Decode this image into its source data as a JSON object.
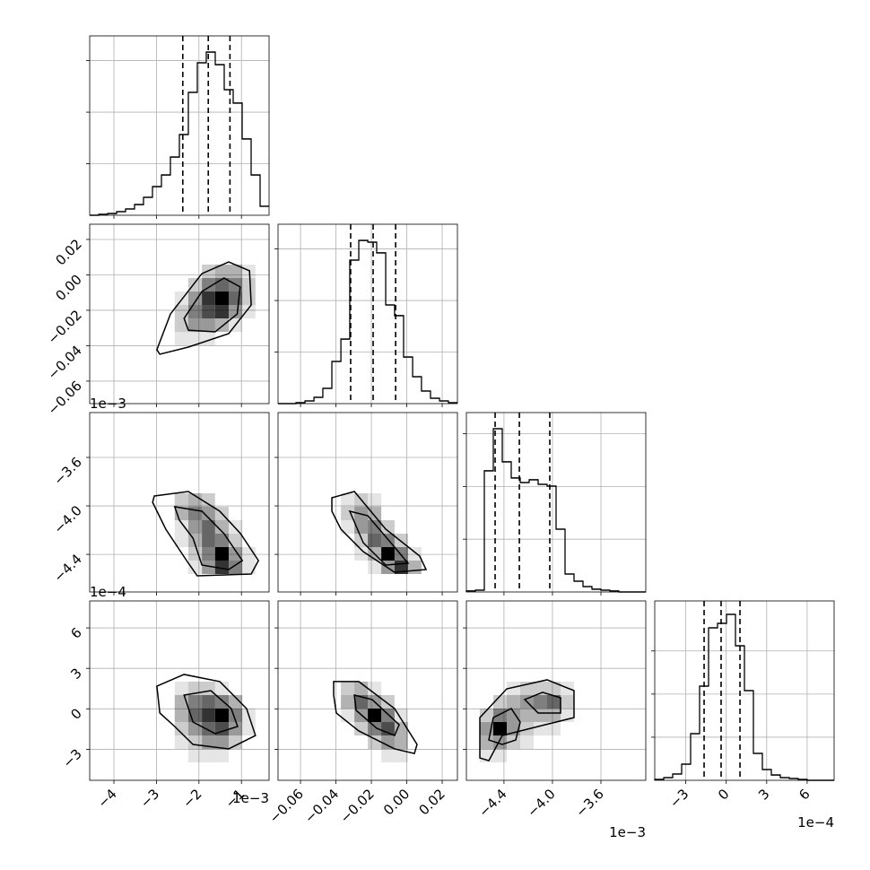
{
  "chart_data": {
    "type": "corner",
    "color": "#000000",
    "grid": true,
    "axes": [
      {
        "lim": [
          -4.57,
          -0.35
        ],
        "ticks": [
          {
            "value": -4,
            "label": "−4"
          },
          {
            "value": -3,
            "label": "−3"
          },
          {
            "value": -2,
            "label": "−2"
          },
          {
            "value": -1,
            "label": "−1"
          }
        ],
        "offset": "1e−3"
      },
      {
        "lim": [
          -0.0727,
          0.0286
        ],
        "ticks": [
          {
            "value": -0.06,
            "label": "−0.06"
          },
          {
            "value": -0.04,
            "label": "−0.04"
          },
          {
            "value": -0.02,
            "label": "−0.02"
          },
          {
            "value": 0,
            "label": "0.00"
          },
          0.02
        ]
      },
      {
        "lim": [
          -4.71,
          -3.23
        ],
        "ticks": [
          {
            "value": -4.4,
            "label": "−4.4"
          },
          {
            "value": -4,
            "label": "−4.0"
          },
          {
            "value": -3.6,
            "label": "−3.6"
          }
        ],
        "offset": "1e−3"
      },
      {
        "lim": [
          -5.3,
          8
        ],
        "ticks": [
          {
            "value": -3,
            "label": "−3"
          },
          0,
          3,
          6
        ],
        "offset": "1e−4"
      }
    ],
    "histograms": [
      {
        "bins": [
          -4.57,
          -4.359,
          -4.148,
          -3.937,
          -3.726,
          -3.515,
          -3.304,
          -3.093,
          -2.882,
          -2.671,
          -2.46,
          -2.249,
          -2.038,
          -1.827,
          -1.616,
          -1.405,
          -1.194,
          -0.983,
          -0.772,
          -0.561,
          -0.35
        ],
        "values": [
          0,
          9,
          17,
          35,
          61,
          104,
          174,
          278,
          391,
          565,
          783,
          1192,
          1479,
          1583,
          1461,
          1218,
          1088,
          740,
          391,
          87
        ],
        "quantiles": [
          -2.38,
          -1.78,
          -1.27
        ],
        "ylim": [
          0,
          1740
        ],
        "yticks": [
          500,
          1000,
          1500
        ]
      },
      {
        "bins": [
          -0.0727,
          -0.0676,
          -0.0626,
          -0.0575,
          -0.0524,
          -0.0474,
          -0.0423,
          -0.0372,
          -0.0322,
          -0.0271,
          -0.022,
          -0.017,
          -0.0119,
          -0.0069,
          -0.0018,
          0.0033,
          0.0083,
          0.0134,
          0.0185,
          0.0235,
          0.0286
        ],
        "values": [
          0,
          0,
          9,
          26,
          61,
          148,
          409,
          626,
          1392,
          1583,
          1566,
          1462,
          957,
          853,
          452,
          261,
          122,
          52,
          26,
          9
        ],
        "quantiles": [
          -0.0317,
          -0.019,
          -0.0063
        ],
        "ylim": [
          0,
          1740
        ],
        "yticks": [
          500,
          1000,
          1500
        ]
      },
      {
        "bins": [
          -4.71,
          -4.636,
          -4.562,
          -4.488,
          -4.414,
          -4.34,
          -4.266,
          -4.192,
          -4.118,
          -4.044,
          -3.97,
          -3.896,
          -3.822,
          -3.748,
          -3.674,
          -3.6,
          -3.526,
          -3.452,
          -3.378,
          -3.304,
          -3.23
        ],
        "values": [
          9,
          17,
          1148,
          1547,
          1233,
          1080,
          1037,
          1063,
          1020,
          1003,
          595,
          170,
          102,
          51,
          26,
          17,
          9,
          0,
          0,
          0
        ],
        "quantiles": [
          -4.473,
          -4.273,
          -4.022
        ],
        "ylim": [
          0,
          1700
        ],
        "yticks": [
          500,
          1000,
          1500
        ]
      },
      {
        "bins": [
          -5.3,
          -4.635,
          -3.97,
          -3.305,
          -2.64,
          -1.975,
          -1.31,
          -0.645,
          0.02,
          0.685,
          1.35,
          2.015,
          2.68,
          3.345,
          4.01,
          4.675,
          5.34,
          6.005,
          6.67,
          7.335,
          8
        ],
        "values": [
          10,
          31,
          73,
          187,
          541,
          1092,
          1768,
          1820,
          1924,
          1560,
          1040,
          312,
          125,
          62,
          31,
          21,
          10,
          0,
          0,
          0
        ],
        "quantiles": [
          -1.64,
          -0.38,
          1.02
        ],
        "ylim": [
          0,
          2080
        ],
        "yticks": [
          500,
          1000,
          1500
        ]
      }
    ],
    "panels": [
      {
        "xbins": [
          -2.57,
          -2.25,
          -1.93,
          -1.62,
          -1.3,
          -0.98,
          -0.67
        ],
        "ybins": [
          -0.0398,
          -0.0322,
          -0.0246,
          -0.017,
          -0.0094,
          -0.0018,
          0.0058
        ],
        "counts": [
          [
            1,
            1,
            1,
            0,
            0,
            0
          ],
          [
            2,
            4,
            4,
            3,
            1,
            0
          ],
          [
            2,
            5,
            7,
            8,
            4,
            1
          ],
          [
            1,
            4,
            8,
            10,
            6,
            2
          ],
          [
            0,
            2,
            5,
            6,
            5,
            2
          ],
          [
            0,
            0,
            2,
            3,
            3,
            1
          ]
        ],
        "contours": [
          {
            "x": [
              -2.99,
              -2.67,
              -1.93,
              -1.3,
              -0.81,
              -0.77,
              -1.3,
              -2.25,
              -2.92
            ],
            "y": [
              -0.0423,
              -0.0221,
              0.0007,
              0.0073,
              0.0023,
              -0.017,
              -0.0332,
              -0.0408,
              -0.0448
            ]
          },
          {
            "x": [
              -2.35,
              -1.93,
              -1.41,
              -1.03,
              -1.1,
              -1.62,
              -2.25
            ],
            "y": [
              -0.0246,
              -0.0094,
              -0.0018,
              -0.0068,
              -0.0221,
              -0.0322,
              -0.0312
            ]
          }
        ]
      },
      {
        "xbins": [
          -2.57,
          -2.25,
          -1.93,
          -1.62,
          -1.3,
          -0.98,
          -0.67
        ],
        "ybins": [
          -4.562,
          -4.451,
          -4.34,
          -4.229,
          -4.118,
          -4.007,
          -3.896
        ],
        "counts": [
          [
            0,
            1,
            4,
            8,
            5,
            1
          ],
          [
            0,
            2,
            5,
            10,
            4,
            1
          ],
          [
            1,
            3,
            6,
            5,
            2,
            0
          ],
          [
            1,
            4,
            6,
            3,
            1,
            0
          ],
          [
            3,
            5,
            4,
            2,
            0,
            0
          ],
          [
            2,
            3,
            2,
            0,
            0,
            0
          ]
        ],
        "contours": [
          {
            "x": [
              -3.05,
              -2.25,
              -1.51,
              -1.02,
              -0.6,
              -0.77,
              -2.04,
              -2.29,
              -2.78,
              -3.09
            ],
            "y": [
              -3.918,
              -3.881,
              -4.044,
              -4.229,
              -4.451,
              -4.562,
              -4.577,
              -4.451,
              -4.192,
              -3.97
            ]
          },
          {
            "x": [
              -2.57,
              -1.93,
              -1.41,
              -0.98,
              -1.3,
              -1.93,
              -2.14,
              -2.46
            ],
            "y": [
              -4.007,
              -4.044,
              -4.229,
              -4.451,
              -4.525,
              -4.488,
              -4.266,
              -4.118
            ]
          }
        ]
      },
      {
        "xbins": [
          -0.0372,
          -0.0296,
          -0.022,
          -0.0144,
          -0.0069,
          0.0007,
          0.0083
        ],
        "ybins": [
          -4.562,
          -4.451,
          -4.34,
          -4.229,
          -4.118,
          -4.007,
          -3.896
        ],
        "counts": [
          [
            0,
            0,
            1,
            4,
            8,
            3
          ],
          [
            0,
            1,
            3,
            10,
            5,
            1
          ],
          [
            0,
            2,
            6,
            5,
            2,
            0
          ],
          [
            1,
            4,
            5,
            2,
            0,
            0
          ],
          [
            2,
            4,
            3,
            0,
            0,
            0
          ],
          [
            1,
            2,
            1,
            0,
            0,
            0
          ]
        ],
        "contours": [
          {
            "x": [
              -0.0423,
              -0.0296,
              -0.0119,
              0.0073,
              0.0109,
              -0.0069,
              -0.0246,
              -0.0372,
              -0.0423
            ],
            "y": [
              -3.933,
              -3.881,
              -4.192,
              -4.414,
              -4.525,
              -4.547,
              -4.377,
              -4.192,
              -4.044
            ]
          },
          {
            "x": [
              -0.0322,
              -0.022,
              -0.0069,
              0.0007,
              -0.0119,
              -0.0246
            ],
            "y": [
              -4.044,
              -4.081,
              -4.34,
              -4.473,
              -4.488,
              -4.303
            ]
          }
        ]
      },
      {
        "xbins": [
          -2.57,
          -2.25,
          -1.93,
          -1.62,
          -1.3,
          -0.98,
          -0.67
        ],
        "ybins": [
          -3.97,
          -2.97,
          -1.98,
          -0.98,
          0.02,
          1.02,
          2.02
        ],
        "counts": [
          [
            0,
            1,
            1,
            1,
            0,
            0
          ],
          [
            1,
            2,
            4,
            4,
            2,
            0
          ],
          [
            2,
            4,
            6,
            7,
            4,
            1
          ],
          [
            3,
            6,
            8,
            10,
            5,
            1
          ],
          [
            3,
            5,
            6,
            5,
            3,
            0
          ],
          [
            1,
            2,
            2,
            1,
            0,
            0
          ]
        ],
        "contours": [
          {
            "x": [
              -2.99,
              -2.35,
              -1.51,
              -0.88,
              -0.67,
              -1.3,
              -2.14,
              -2.57,
              -2.92
            ],
            "y": [
              1.68,
              2.55,
              2.02,
              0.02,
              -1.98,
              -2.97,
              -2.64,
              -1.31,
              -0.31
            ]
          },
          {
            "x": [
              -2.35,
              -1.72,
              -1.24,
              -1.09,
              -1.62,
              -2.14
            ],
            "y": [
              1.02,
              1.35,
              0.02,
              -1.31,
              -1.84,
              -0.98
            ]
          }
        ]
      },
      {
        "xbins": [
          -0.0372,
          -0.0296,
          -0.022,
          -0.0144,
          -0.0069,
          0.0007,
          0.0083
        ],
        "ybins": [
          -3.97,
          -2.97,
          -1.98,
          -0.98,
          0.02,
          1.02,
          2.02
        ],
        "counts": [
          [
            0,
            0,
            0,
            1,
            1,
            0
          ],
          [
            0,
            0,
            2,
            4,
            3,
            0
          ],
          [
            0,
            2,
            5,
            7,
            3,
            0
          ],
          [
            1,
            4,
            10,
            5,
            1,
            0
          ],
          [
            3,
            6,
            4,
            2,
            0,
            0
          ],
          [
            2,
            3,
            1,
            0,
            0,
            0
          ]
        ],
        "contours": [
          {
            "x": [
              -0.0413,
              -0.0271,
              -0.0069,
              0.0058,
              0.0043,
              -0.0069,
              -0.0271,
              -0.0398,
              -0.0413
            ],
            "y": [
              2.02,
              2.02,
              0.02,
              -2.64,
              -3.31,
              -2.97,
              -1.64,
              -0.31,
              1.02
            ]
          },
          {
            "x": [
              -0.0296,
              -0.0195,
              -0.0043,
              -0.0069,
              -0.017,
              -0.0286
            ],
            "y": [
              1.02,
              0.68,
              -1.18,
              -1.98,
              -1.44,
              -0.11
            ]
          }
        ]
      },
      {
        "xbins": [
          -4.599,
          -4.488,
          -4.377,
          -4.266,
          -4.155,
          -4.044,
          -3.933,
          -3.822
        ],
        "ybins": [
          -3.97,
          -2.97,
          -1.98,
          -0.98,
          0.02,
          1.02,
          2.02
        ],
        "counts": [
          [
            1,
            1,
            0,
            0,
            0,
            0,
            0
          ],
          [
            3,
            4,
            2,
            1,
            0,
            0,
            0
          ],
          [
            4,
            10,
            4,
            2,
            1,
            1,
            0
          ],
          [
            2,
            5,
            4,
            3,
            3,
            3,
            1
          ],
          [
            0,
            2,
            3,
            4,
            5,
            6,
            2
          ],
          [
            0,
            0,
            1,
            2,
            2,
            2,
            1
          ]
        ],
        "contours": [
          {
            "x": [
              -4.599,
              -4.599,
              -4.377,
              -4.044,
              -3.822,
              -3.822,
              -4.118,
              -4.414,
              -4.525
            ],
            "y": [
              -3.64,
              -0.65,
              1.48,
              2.15,
              1.35,
              -0.65,
              -1.31,
              -1.98,
              -3.84
            ]
          },
          {
            "x": [
              -4.525,
              -4.488,
              -4.34,
              -4.266,
              -4.303,
              -4.414
            ],
            "y": [
              -2.31,
              -0.65,
              0.02,
              -0.98,
              -2.31,
              -2.64
            ]
          },
          {
            "x": [
              -4.229,
              -4.081,
              -3.933,
              -3.933,
              -4.118
            ],
            "y": [
              0.69,
              1.22,
              0.82,
              -0.31,
              -0.31
            ]
          }
        ]
      }
    ]
  }
}
